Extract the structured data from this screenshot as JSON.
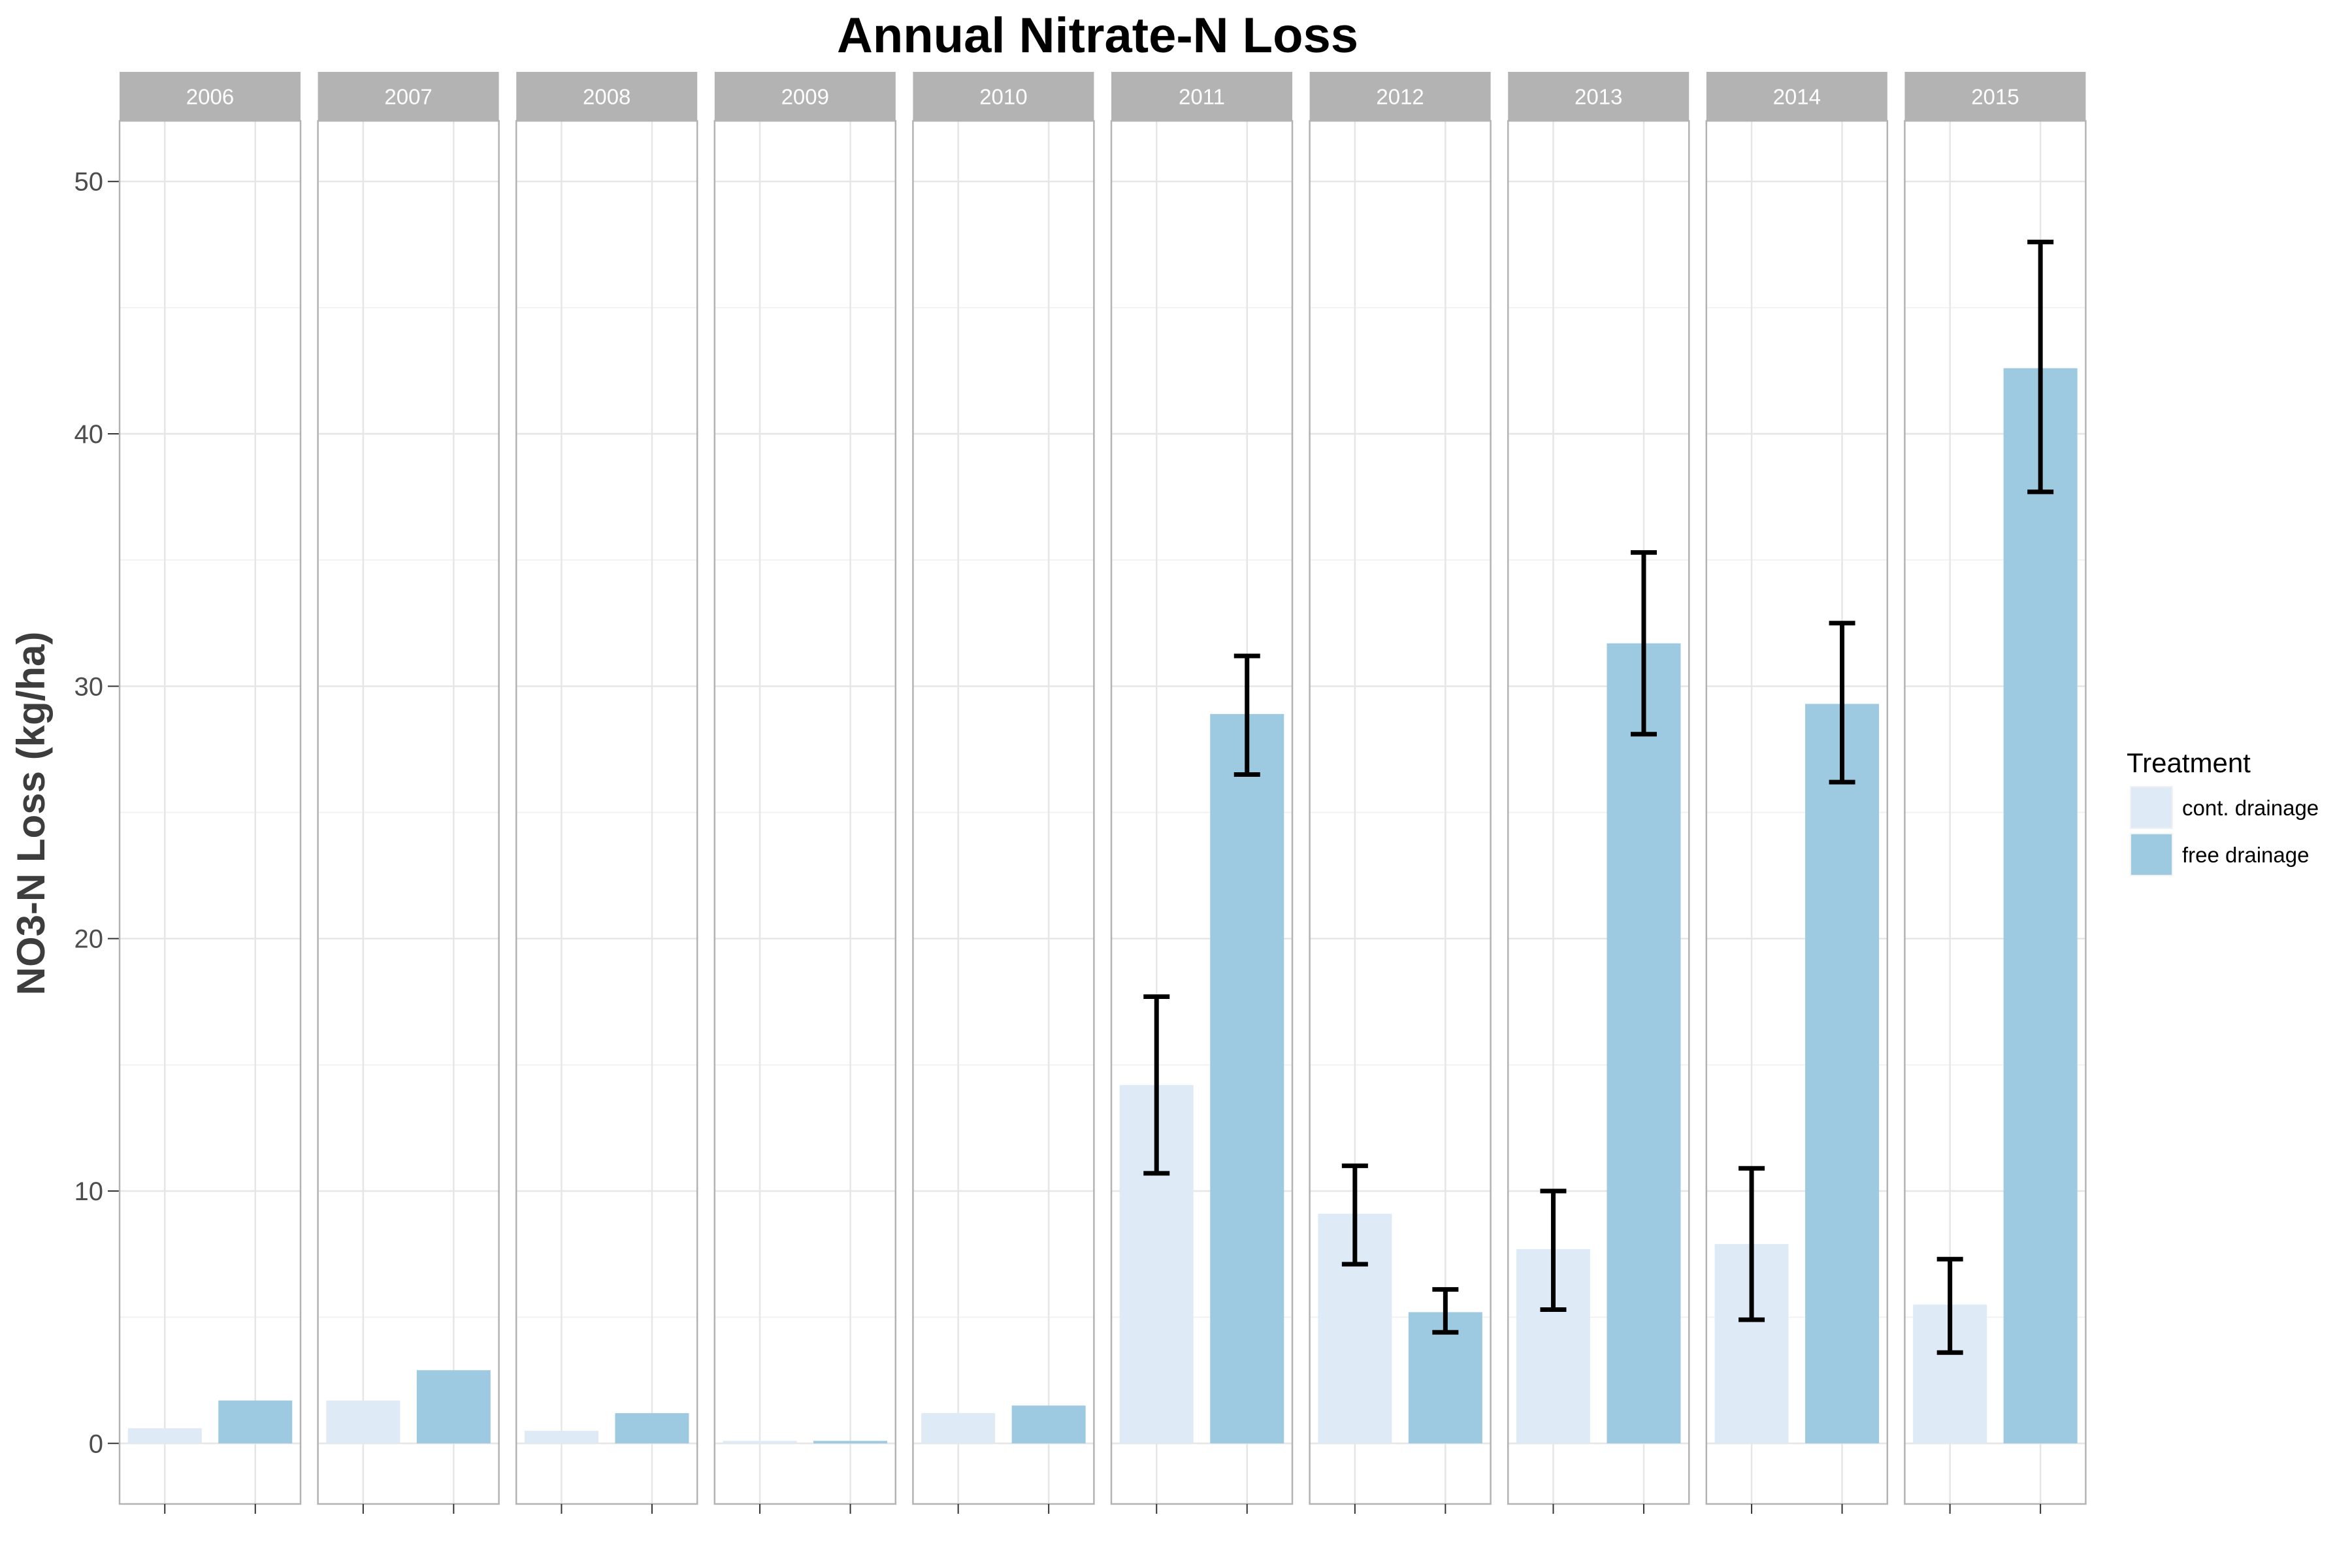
{
  "chart_data": {
    "type": "bar",
    "title": "Annual Nitrate-N Loss",
    "xlabel": "",
    "ylabel": "NO3-N Loss (kg/ha)",
    "ylim": [
      -2.4,
      52.4
    ],
    "yticks": [
      0,
      10,
      20,
      30,
      40,
      50
    ],
    "grid": true,
    "facets": [
      "2006",
      "2007",
      "2008",
      "2009",
      "2010",
      "2011",
      "2012",
      "2013",
      "2014",
      "2015"
    ],
    "legend": {
      "title": "Treatment",
      "placement": "right"
    },
    "series": [
      {
        "name": "cont. drainage",
        "color": "#deebf7",
        "values": [
          0.6,
          1.7,
          0.5,
          0.1,
          1.2,
          14.2,
          9.1,
          7.7,
          7.9,
          5.5
        ],
        "error_low": [
          null,
          null,
          null,
          null,
          null,
          10.7,
          7.1,
          5.3,
          4.9,
          3.6
        ],
        "error_high": [
          null,
          null,
          null,
          null,
          null,
          17.7,
          11.0,
          10.0,
          10.9,
          7.3
        ]
      },
      {
        "name": "free drainage",
        "color": "#9ecae1",
        "values": [
          1.7,
          2.9,
          1.2,
          0.1,
          1.5,
          28.9,
          5.2,
          31.7,
          29.3,
          42.6
        ],
        "error_low": [
          null,
          null,
          null,
          null,
          null,
          26.5,
          4.4,
          28.1,
          26.2,
          37.7
        ],
        "error_high": [
          null,
          null,
          null,
          null,
          null,
          31.2,
          6.1,
          35.3,
          32.5,
          47.6
        ]
      }
    ]
  }
}
